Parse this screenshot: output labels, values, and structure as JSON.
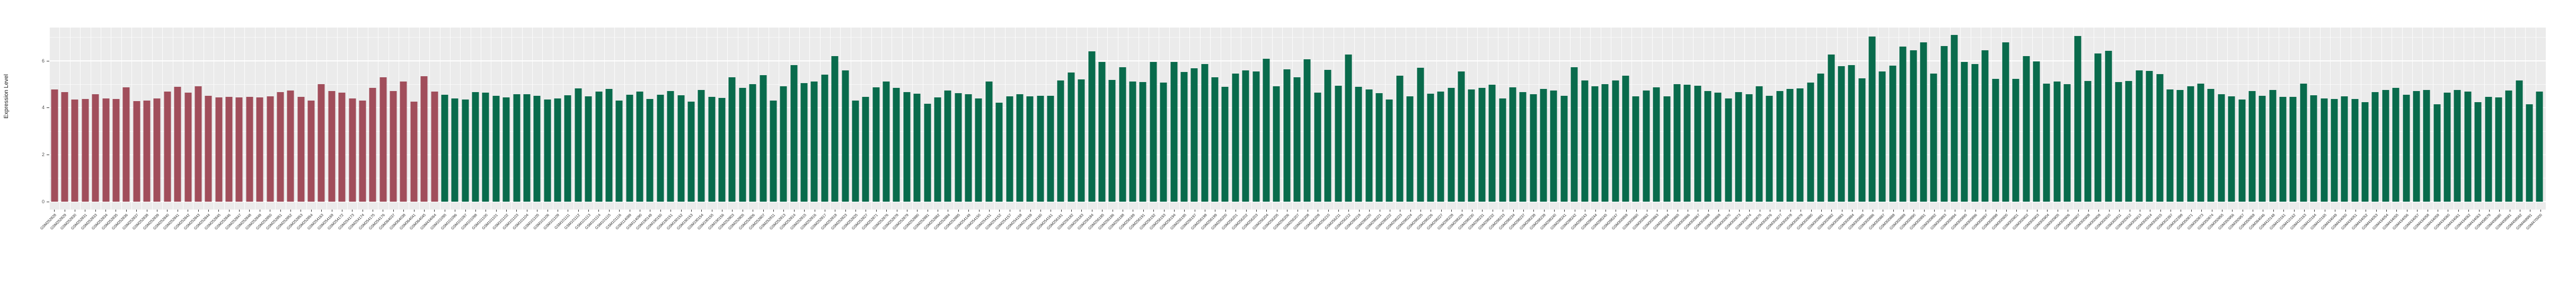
{
  "chart_data": {
    "type": "bar",
    "title": "",
    "xlabel": "",
    "ylabel": "Expression Level",
    "ylim": [
      -0.35,
      7.42
    ],
    "yticks": [
      0,
      2,
      4,
      6
    ],
    "grid": "white major+minor gridlines on gray panel, vertical gridlines between bars",
    "legend": "none",
    "group1_count": 38,
    "group1_color": "#A14E5B",
    "group2_color": "#096B4C",
    "panel_background": "#EBEBEB",
    "categories": [
      "GSM252828",
      "GSM252829",
      "GSM252830",
      "GSM252831",
      "GSM252833",
      "GSM252834",
      "GSM252835",
      "GSM252836",
      "GSM252837",
      "GSM252838",
      "GSM252839",
      "GSM252840",
      "GSM252841",
      "GSM252842",
      "GSM252843",
      "GSM252844",
      "GSM252845",
      "GSM252846",
      "GSM252847",
      "GSM252848",
      "GSM252849",
      "GSM252850",
      "GSM252851",
      "GSM252852",
      "GSM252853",
      "GSM252854",
      "GSM254163",
      "GSM254169",
      "GSM254172",
      "GSM254173",
      "GSM254174",
      "GSM254175",
      "GSM254176",
      "GSM364037",
      "GSM364038",
      "GSM364041",
      "GSM364045",
      "GSM434064",
      "GSM101095",
      "GSM101096",
      "GSM101097",
      "GSM101098",
      "GSM101100",
      "GSM101101",
      "GSM101102",
      "GSM101103",
      "GSM101104",
      "GSM101105",
      "GSM101106",
      "GSM101109",
      "GSM101111",
      "GSM101112",
      "GSM101113",
      "GSM101114",
      "GSM101115",
      "GSM101116",
      "GSM114089",
      "GSM114090",
      "GSM190149",
      "GSM190150",
      "GSM190151",
      "GSM190152",
      "GSM190153",
      "GSM190154",
      "GSM190155",
      "GSM190156",
      "GSM252803",
      "GSM252805",
      "GSM252806",
      "GSM252807",
      "GSM252811",
      "GSM252813",
      "GSM252814",
      "GSM252815",
      "GSM252816",
      "GSM252817",
      "GSM252818",
      "GSM252823",
      "GSM252825",
      "GSM252827",
      "GSM252871",
      "GSM252876",
      "GSM252878",
      "GSM252879",
      "GSM252880",
      "GSM252881",
      "GSM252882",
      "GSM252884",
      "GSM252885",
      "GSM254149",
      "GSM254150",
      "GSM254151",
      "GSM254152",
      "GSM254157",
      "GSM254158",
      "GSM254159",
      "GSM254160",
      "GSM254161",
      "GSM256181",
      "GSM256182",
      "GSM256183",
      "GSM256184",
      "GSM256185",
      "GSM256186",
      "GSM256188",
      "GSM256189",
      "GSM256191",
      "GSM256192",
      "GSM256193",
      "GSM256194",
      "GSM256195",
      "GSM256197",
      "GSM256198",
      "GSM256199",
      "GSM256200",
      "GSM256201",
      "GSM256202",
      "GSM256203",
      "GSM256204",
      "GSM256205",
      "GSM256206",
      "GSM256207",
      "GSM256208",
      "GSM256209",
      "GSM256210",
      "GSM256211",
      "GSM256212",
      "GSM298219",
      "GSM298220",
      "GSM298221",
      "GSM298222",
      "GSM298223",
      "GSM298224",
      "GSM298225",
      "GSM298226",
      "GSM298227",
      "GSM298228",
      "GSM298229",
      "GSM298230",
      "GSM298231",
      "GSM298232",
      "GSM298233",
      "GSM298234",
      "GSM298237",
      "GSM298238",
      "GSM298239",
      "GSM298240",
      "GSM298241",
      "GSM298242",
      "GSM298243",
      "GSM298244",
      "GSM298245",
      "GSM298247",
      "GSM300859",
      "GSM300860",
      "GSM300862",
      "GSM300863",
      "GSM300864",
      "GSM300865",
      "GSM300866",
      "GSM300867",
      "GSM300868",
      "GSM300869",
      "GSM300870",
      "GSM300873",
      "GSM300874",
      "GSM300875",
      "GSM300876",
      "GSM300877",
      "GSM300878",
      "GSM300879",
      "GSM300880",
      "GSM300881",
      "GSM300882",
      "GSM300883",
      "GSM300884",
      "GSM300885",
      "GSM300886",
      "GSM300887",
      "GSM300888",
      "GSM300889",
      "GSM300890",
      "GSM300891",
      "GSM300892",
      "GSM300893",
      "GSM300894",
      "GSM300895",
      "GSM300896",
      "GSM300897",
      "GSM300898",
      "GSM300900",
      "GSM300901",
      "GSM300902",
      "GSM300903",
      "GSM300904",
      "GSM300905",
      "GSM300906",
      "GSM300907",
      "GSM300908",
      "GSM300909",
      "GSM300910",
      "GSM300911",
      "GSM300912",
      "GSM300913",
      "GSM300914",
      "GSM300915",
      "GSM302397",
      "GSM302399",
      "GSM350871",
      "GSM350873",
      "GSM350874",
      "GSM350955",
      "GSM350956",
      "GSM350957",
      "GSM350958",
      "GSM364046",
      "GSM410148",
      "GSM410161",
      "GSM410162",
      "GSM410163",
      "GSM410164",
      "GSM410165",
      "GSM434049",
      "GSM434050",
      "GSM434051",
      "GSM434052",
      "GSM434053",
      "GSM434054",
      "GSM434055",
      "GSM434056",
      "GSM434057",
      "GSM434058",
      "GSM434059",
      "GSM434060",
      "GSM434061",
      "GSM434062",
      "GSM434063",
      "GSM458579",
      "GSM458580",
      "GSM458581",
      "GSM458582",
      "GSM469991",
      "GSM470000"
    ],
    "values": [
      4.78,
      4.67,
      4.35,
      4.37,
      4.57,
      4.4,
      4.38,
      4.88,
      4.29,
      4.32,
      4.41,
      4.69,
      4.9,
      4.65,
      4.91,
      4.52,
      4.45,
      4.47,
      4.44,
      4.47,
      4.45,
      4.49,
      4.66,
      4.73,
      4.47,
      4.32,
      5.01,
      4.71,
      4.65,
      4.41,
      4.32,
      4.86,
      5.31,
      4.71,
      5.11,
      4.26,
      5.35,
      4.7,
      4.56,
      4.41,
      4.35,
      4.68,
      4.65,
      4.52,
      4.44,
      4.59,
      4.57,
      4.52,
      4.36,
      4.39,
      4.54,
      4.83,
      4.48,
      4.7,
      4.8,
      4.31,
      4.56,
      4.69,
      4.37,
      4.56,
      4.71,
      4.53,
      4.27,
      4.76,
      4.47,
      4.42,
      5.31,
      4.85,
      5.01,
      5.4,
      4.31,
      4.91,
      5.81,
      5.06,
      5.12,
      5.41,
      6.21,
      5.59,
      4.32,
      4.47,
      4.88,
      5.11,
      4.86,
      4.68,
      4.6,
      4.17,
      4.44,
      4.73,
      4.62,
      4.59,
      4.41,
      5.11,
      4.21,
      4.49,
      4.59,
      4.48,
      4.51,
      4.52,
      5.17,
      5.51,
      5.2,
      6.4,
      5.96,
      5.19,
      5.72,
      5.13,
      5.1,
      5.96,
      5.08,
      5.95,
      5.53,
      5.68,
      5.86,
      5.31,
      4.9,
      5.46,
      5.59,
      5.56,
      6.08,
      4.92,
      5.65,
      5.31,
      6.06,
      4.65,
      5.62,
      4.93,
      6.27,
      4.9,
      4.78,
      4.62,
      4.35,
      5.38,
      4.48,
      5.7,
      4.61,
      4.7,
      4.84,
      5.55,
      4.79,
      4.86,
      4.98,
      4.41,
      4.88,
      4.68,
      4.59,
      4.81,
      4.73,
      4.51,
      5.72,
      5.17,
      4.92,
      5.01,
      5.17,
      5.38,
      4.5,
      4.73,
      4.88,
      4.48,
      5.01,
      4.99,
      4.93,
      4.72,
      4.65,
      4.41,
      4.68,
      4.57,
      4.92,
      4.52,
      4.72,
      4.81,
      4.83,
      5.08,
      5.47,
      6.28,
      5.78,
      5.82,
      5.26,
      7.04,
      5.56,
      5.8,
      6.6,
      6.46,
      6.78,
      5.47,
      6.63,
      7.1,
      5.96,
      5.87,
      6.45,
      5.24,
      6.79,
      5.24,
      6.21,
      5.97,
      5.04,
      5.13,
      5.01,
      7.06,
      5.15,
      6.32,
      6.42,
      5.1,
      5.15,
      5.59,
      5.57,
      5.44,
      4.78,
      4.77,
      4.91,
      5.04,
      4.8,
      4.57,
      4.48,
      4.35,
      4.72,
      4.52,
      4.76,
      4.47,
      4.47,
      5.03,
      4.53,
      4.41,
      4.37,
      4.5,
      4.38,
      4.25,
      4.68,
      4.75,
      4.84,
      4.55,
      4.71,
      4.75,
      4.14,
      4.65,
      4.75,
      4.69,
      4.24,
      4.46,
      4.45,
      4.73,
      5.17,
      4.16,
      4.69
    ]
  },
  "axis": {
    "y_title": "Expression Level",
    "y_tick_labels": [
      "0",
      "2",
      "4",
      "6"
    ]
  }
}
